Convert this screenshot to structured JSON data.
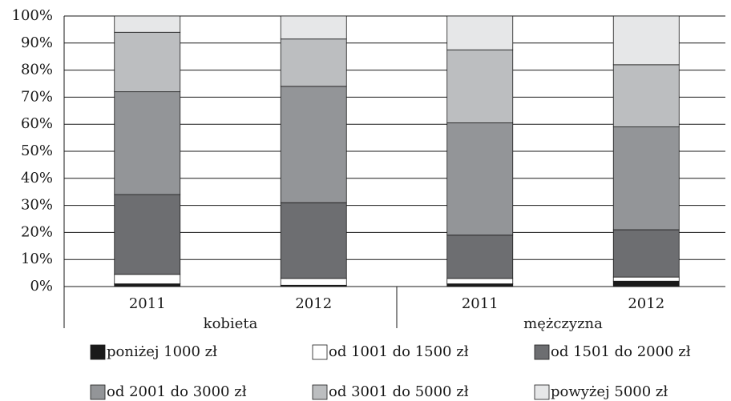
{
  "chart_data": {
    "type": "stacked_bar",
    "categories": [
      "2011",
      "2012",
      "2011",
      "2012"
    ],
    "groups": [
      "kobieta",
      "mężczyzna"
    ],
    "series": [
      {
        "name": "poniżej 1000 zł",
        "color": "#1a1a1a",
        "values": [
          1,
          0.5,
          1,
          2
        ]
      },
      {
        "name": "od 1001 do 1500 zł",
        "color": "#ffffff",
        "values": [
          3.5,
          2.5,
          2,
          1.5
        ]
      },
      {
        "name": "od 1501 do 2000 zł",
        "color": "#6d6e71",
        "values": [
          29.5,
          28,
          16,
          17.5
        ]
      },
      {
        "name": "od 2001 do 3000 zł",
        "color": "#939598",
        "values": [
          38,
          43,
          41.5,
          38
        ]
      },
      {
        "name": "od 3001 do 5000 zł",
        "color": "#bcbec0",
        "values": [
          22,
          17.5,
          27,
          23
        ]
      },
      {
        "name": "powyżej 5000 zł",
        "color": "#e6e7e8",
        "values": [
          6,
          8.5,
          12.5,
          18
        ]
      }
    ],
    "ylim": [
      0,
      100
    ],
    "yticks": [
      {
        "value": 0,
        "label": "0%"
      },
      {
        "value": 10,
        "label": "10%"
      },
      {
        "value": 20,
        "label": "20%"
      },
      {
        "value": 30,
        "label": "30%"
      },
      {
        "value": 40,
        "label": "40%"
      },
      {
        "value": 50,
        "label": "50%"
      },
      {
        "value": 60,
        "label": "60%"
      },
      {
        "value": 70,
        "label": "70%"
      },
      {
        "value": 80,
        "label": "80%"
      },
      {
        "value": 90,
        "label": "90%"
      },
      {
        "value": 100,
        "label": "100%"
      }
    ],
    "grid": true
  }
}
